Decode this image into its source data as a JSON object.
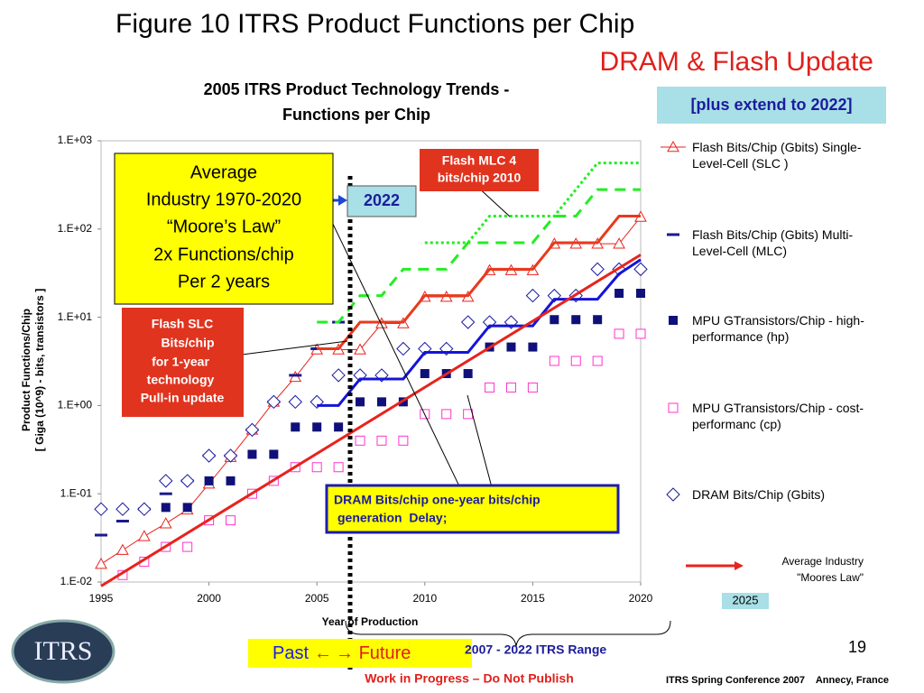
{
  "slide": {
    "title": "Figure 10 ITRS Product Functions per Chip",
    "subtitle": "DRAM & Flash Update",
    "extend_note": "[plus extend to 2022]",
    "logo": "ITRS",
    "range_label": [
      "Past",
      "←",
      "→ Future"
    ],
    "range_caption": "2007 - 2022 ITRS Range",
    "page_number": "19",
    "warning": "Work in Progress – Do Not Publish",
    "footer": "ITRS Spring Conference 2007    Annecy, France"
  },
  "chart_data": {
    "type": "line",
    "title": [
      "2005 ITRS Product Technology Trends -",
      "Functions per Chip"
    ],
    "xlabel": "Year of Production",
    "ylabel": [
      "Product Functions/Chip",
      "[ Giga (10^9) - bits, transistors ]"
    ],
    "log_scale": true,
    "grid": false,
    "legend_position": "right",
    "x": [
      1995,
      1996,
      1997,
      1998,
      1999,
      2000,
      2001,
      2002,
      2003,
      2004,
      2005,
      2006,
      2007,
      2008,
      2009,
      2010,
      2011,
      2012,
      2013,
      2014,
      2015,
      2016,
      2017,
      2018,
      2019,
      2020
    ],
    "xlim": [
      1995,
      2020
    ],
    "xticks": [
      1995,
      2000,
      2005,
      2010,
      2015,
      2020
    ],
    "ylim": [
      0.01,
      1000
    ],
    "yticks": [
      {
        "value": 0.01,
        "label": "1.E-02"
      },
      {
        "value": 0.1,
        "label": "1.E-01"
      },
      {
        "value": 1,
        "label": "1.E+00"
      },
      {
        "value": 10,
        "label": "1.E+01"
      },
      {
        "value": 100,
        "label": "1.E+02"
      },
      {
        "value": 1000,
        "label": "1.E+03"
      }
    ],
    "series": [
      {
        "name": "Flash Bits/Chip (Gbits) Single-Level-Cell (SLC )",
        "color": "#e8231d",
        "marker": "triangle-open",
        "line": "thin",
        "values": [
          0.016,
          0.023,
          0.033,
          0.046,
          0.066,
          0.13,
          0.26,
          0.53,
          1.1,
          2.1,
          4.3,
          4.3,
          4.3,
          8.5,
          8.5,
          17,
          17,
          17,
          34,
          34,
          34,
          68,
          68,
          68,
          68,
          137
        ]
      },
      {
        "name": "Flash Bits/Chip (Gbits) Multi-Level-Cell (MLC)",
        "color": "#1a1a8c",
        "marker": "dash",
        "line": "none",
        "values": [
          0.034,
          0.049,
          0.067,
          0.1,
          0.14,
          0.27,
          0.27,
          0.53,
          1.1,
          2.2,
          4.4,
          8.8,
          null,
          null,
          null,
          null,
          null,
          null,
          null,
          null,
          null,
          null,
          null,
          null,
          null,
          null
        ]
      },
      {
        "name": "MPU GTransistors/Chip - high-performance (hp)",
        "color": "#10107a",
        "marker": "square-filled",
        "line": "none",
        "values": [
          null,
          null,
          null,
          0.07,
          0.07,
          0.14,
          0.14,
          0.28,
          0.28,
          0.57,
          0.57,
          0.57,
          1.1,
          1.1,
          1.1,
          2.3,
          2.3,
          2.3,
          4.6,
          4.6,
          4.6,
          9.4,
          9.4,
          9.4,
          18.7,
          18.7
        ]
      },
      {
        "name": "MPU GTransistors/Chip - cost-performanc (cp)",
        "color": "#ff33cc",
        "marker": "square-open",
        "line": "none",
        "values": [
          null,
          0.012,
          0.017,
          0.025,
          0.025,
          0.05,
          0.05,
          0.1,
          0.14,
          0.2,
          0.2,
          0.2,
          0.4,
          0.4,
          0.4,
          0.8,
          0.8,
          0.8,
          1.6,
          1.6,
          1.6,
          3.2,
          3.2,
          3.2,
          6.5,
          6.5
        ]
      },
      {
        "name": "DRAM Bits/Chip (Gbits)",
        "color": "#1a1aa0",
        "marker": "diamond-open",
        "line": "none",
        "values": [
          0.067,
          0.067,
          0.067,
          0.14,
          0.14,
          0.27,
          0.27,
          0.53,
          1.1,
          1.1,
          1.1,
          2.2,
          2.2,
          2.2,
          4.4,
          4.4,
          4.4,
          8.8,
          8.8,
          8.8,
          17.6,
          17.6,
          17.6,
          35,
          35,
          35
        ]
      },
      {
        "color": "#22ee22",
        "marker": "none",
        "line": "dotted",
        "values": [
          null,
          null,
          null,
          null,
          null,
          null,
          null,
          null,
          null,
          null,
          null,
          null,
          null,
          null,
          null,
          70,
          70,
          70,
          140,
          140,
          140,
          140,
          280,
          560,
          560,
          560
        ]
      },
      {
        "color": "#22ee22",
        "marker": "none",
        "line": "dashed",
        "values": [
          null,
          null,
          null,
          null,
          null,
          null,
          null,
          null,
          null,
          null,
          8.8,
          8.8,
          17.6,
          17.6,
          35,
          35,
          35,
          70,
          70,
          70,
          70,
          140,
          140,
          280,
          280,
          280
        ]
      },
      {
        "color": "#e83a1d",
        "marker": "none",
        "line": "solid",
        "values": [
          null,
          null,
          null,
          null,
          null,
          null,
          null,
          null,
          null,
          null,
          4.4,
          4.4,
          8.8,
          8.8,
          8.8,
          17.6,
          17.6,
          17.6,
          35,
          35,
          35,
          70,
          70,
          70,
          140,
          140
        ]
      },
      {
        "color": "#1414d8",
        "marker": "none",
        "line": "solid",
        "values": [
          null,
          null,
          null,
          null,
          null,
          null,
          null,
          null,
          null,
          null,
          1,
          1,
          2,
          2,
          2,
          4,
          4,
          4,
          8,
          8,
          8,
          16,
          16,
          16,
          31,
          45
        ]
      },
      {
        "name": "Average Industry \"Moores Law\"",
        "color": "#e8231d",
        "marker": "none",
        "line": "thick",
        "x": [
          1995,
          2020
        ],
        "values": [
          0.009,
          51
        ]
      }
    ],
    "annotations": [
      {
        "lines": [
          "Average",
          "Industry 1970-2020",
          "“Moore’s Law”",
          "2x Functions/chip",
          "Per 2 years"
        ]
      },
      {
        "lines": [
          "2022"
        ]
      },
      {
        "lines": [
          "Flash MLC 4",
          "bits/chip 2010"
        ]
      },
      {
        "lines": [
          "Flash SLC",
          "Bits/chip",
          "for 1-year",
          "technology",
          "Pull-in update"
        ]
      },
      {
        "lines": [
          "DRAM Bits/chip one-year bits/chip",
          "generation  Delay;"
        ]
      },
      {
        "lines": [
          "2025"
        ]
      }
    ]
  }
}
